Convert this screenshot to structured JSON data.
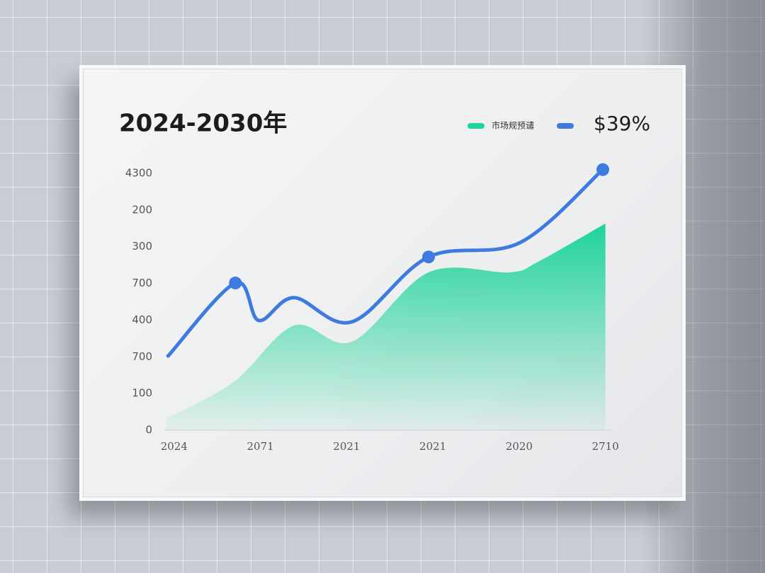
{
  "chart_data": {
    "type": "line-area",
    "title": "2024-2030年",
    "annotation": "$39%",
    "xlim": [
      -0.13,
      5.06
    ],
    "xticks": [
      {
        "value": 0,
        "label": "2024"
      },
      {
        "value": 1,
        "label": "2071"
      },
      {
        "value": 2,
        "label": "2021"
      },
      {
        "value": 3,
        "label": "2021"
      },
      {
        "value": 4,
        "label": "2020"
      },
      {
        "value": 5,
        "label": "2710"
      }
    ],
    "ylim": [
      0,
      720
    ],
    "yticks": [
      0,
      100,
      {
        "value": 200,
        "label": "700"
      },
      {
        "value": 300,
        "label": "400"
      },
      {
        "value": 400,
        "label": "700"
      },
      {
        "value": 500,
        "label": "300"
      },
      {
        "value": 600,
        "label": "200"
      },
      {
        "value": 700,
        "label": "4300"
      }
    ],
    "series": [
      {
        "name": "市场规预谴",
        "kind": "area",
        "color": "#1fd49a",
        "x": [
          -0.09,
          0.69,
          1.39,
          2.06,
          2.95,
          3.89,
          4.22,
          5.0
        ],
        "values": [
          31,
          131,
          285,
          241,
          430,
          430,
          459,
          563
        ]
      },
      {
        "name": null,
        "kind": "line",
        "color": "#3f7ae0",
        "markers": [
          1,
          5,
          7
        ],
        "x": [
          -0.07,
          0.71,
          0.98,
          1.39,
          2.06,
          2.95,
          4.01,
          4.97
        ],
        "values": [
          202,
          401,
          299,
          361,
          295,
          472,
          511,
          710
        ]
      }
    ]
  }
}
